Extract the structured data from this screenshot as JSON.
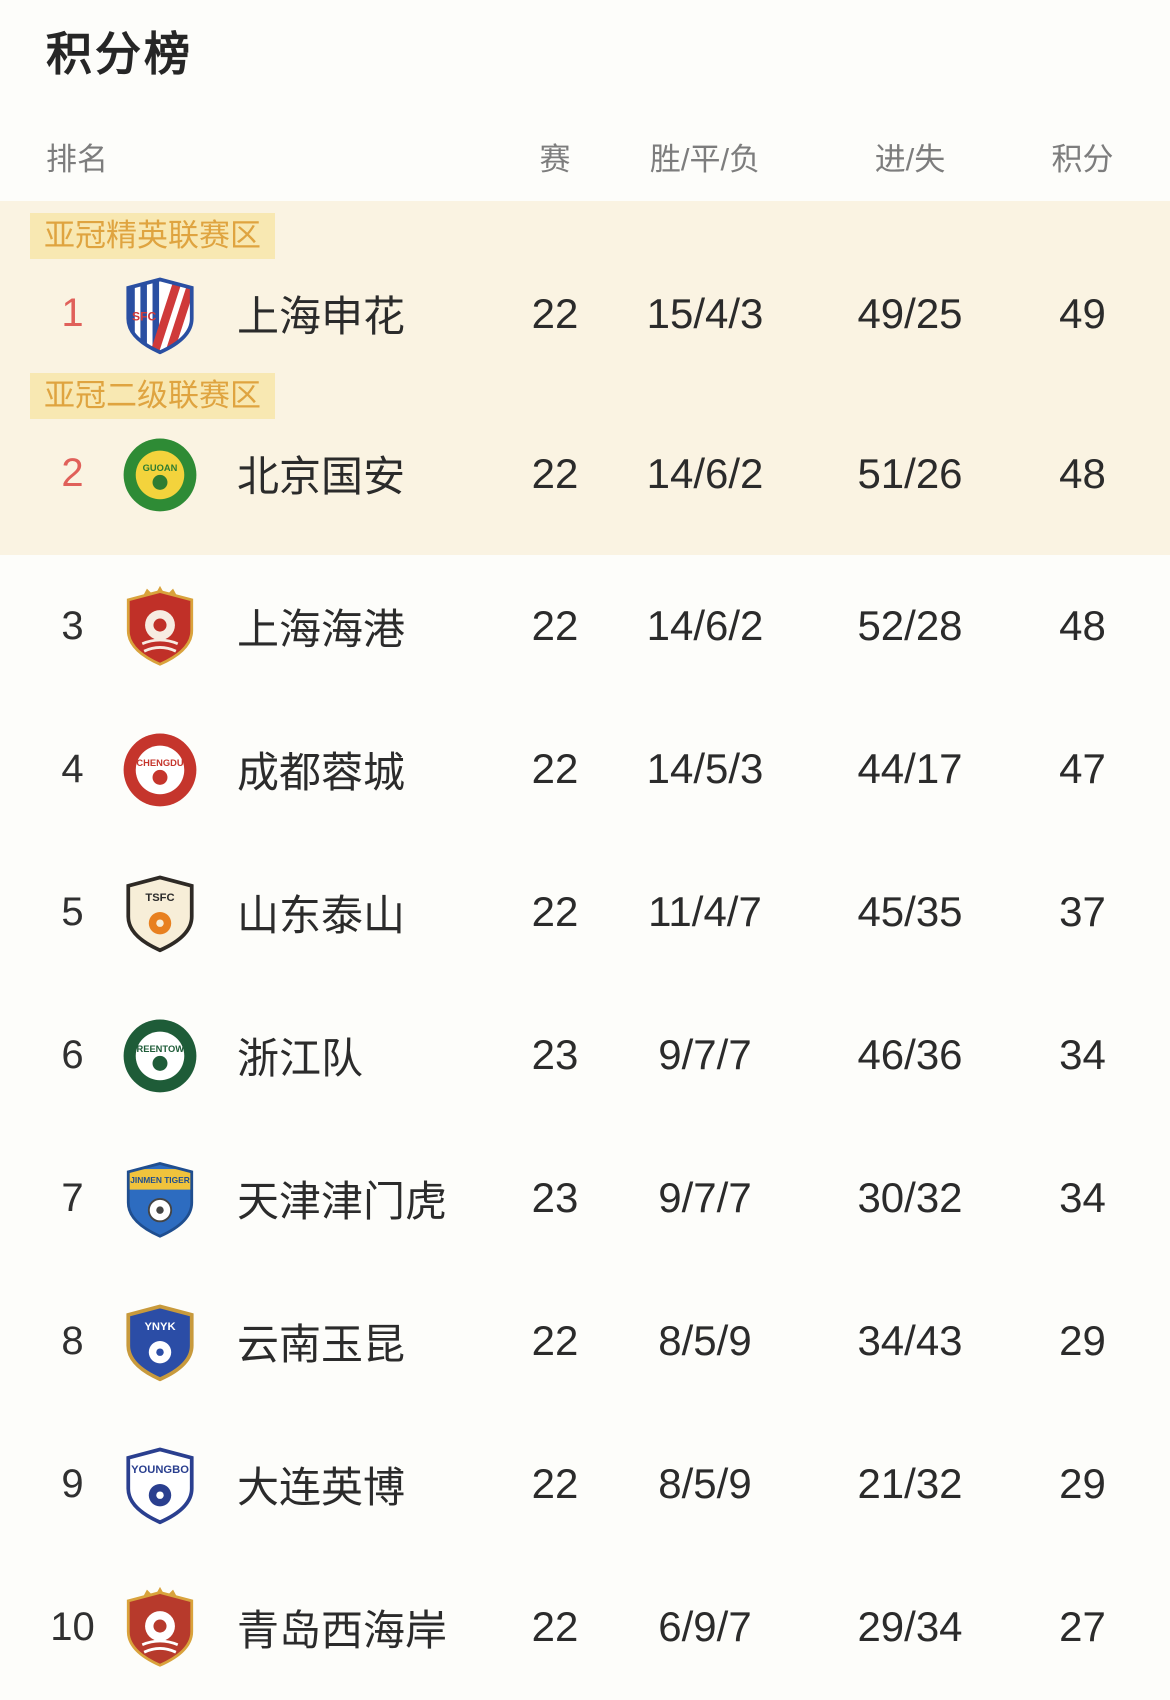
{
  "page": {
    "title": "积分榜"
  },
  "colors": {
    "page_bg": "#fdfdfa",
    "highlight_bg": "#faf3e2",
    "zone_label_bg": "#f8e8b2",
    "zone_label_text": "#dfa440",
    "rank_highlight": "#e0605a",
    "text_primary": "#2b2b2b",
    "text_secondary": "#7d7d7d"
  },
  "table": {
    "headers": {
      "rank": "排名",
      "games": "赛",
      "wdl": "胜/平/负",
      "goals": "进/失",
      "points": "积分"
    },
    "zone_labels": [
      {
        "text": "亚冠精英联赛区",
        "before_rank": 1
      },
      {
        "text": "亚冠二级联赛区",
        "before_rank": 2
      }
    ],
    "rows": [
      {
        "id": "shanghai-shenhua",
        "rank": "1",
        "team": "上海申花",
        "games": "22",
        "wdl": "15/4/3",
        "goals": "49/25",
        "points": "49",
        "rank_highlighted": true,
        "in_highlight_zone": true,
        "badge": {
          "type": "shield-stripes",
          "body": "#ffffff",
          "detail": "#2a4fa2",
          "accent": "#cf3a3a",
          "label": "SFC",
          "label_color": "#cf3a3a"
        }
      },
      {
        "id": "beijing-guoan",
        "rank": "2",
        "team": "北京国安",
        "games": "22",
        "wdl": "14/6/2",
        "goals": "51/26",
        "points": "48",
        "rank_highlighted": true,
        "in_highlight_zone": true,
        "badge": {
          "type": "circle-ring",
          "body": "#2e8b35",
          "detail": "#f3d33c",
          "accent": "#2e7d32",
          "label": "GUOAN",
          "label_color": "#2e7d32"
        }
      },
      {
        "id": "shanghai-port",
        "rank": "3",
        "team": "上海海港",
        "games": "22",
        "wdl": "14/6/2",
        "goals": "52/28",
        "points": "48",
        "rank_highlighted": false,
        "in_highlight_zone": false,
        "badge": {
          "type": "shield-crown",
          "body": "#c03028",
          "detail": "#f7ece2",
          "accent": "#d9a33c",
          "label": "",
          "label_color": "#f7ece2"
        }
      },
      {
        "id": "chengdu-rongcheng",
        "rank": "4",
        "team": "成都蓉城",
        "games": "22",
        "wdl": "14/5/3",
        "goals": "44/17",
        "points": "47",
        "rank_highlighted": false,
        "in_highlight_zone": false,
        "badge": {
          "type": "circle-ring",
          "body": "#c5352c",
          "detail": "#ffffff",
          "accent": "#c5352c",
          "label": "CHENGDU",
          "label_color": "#c5352c"
        }
      },
      {
        "id": "shandong-taishan",
        "rank": "5",
        "team": "山东泰山",
        "games": "22",
        "wdl": "11/4/7",
        "goals": "45/35",
        "points": "37",
        "rank_highlighted": false,
        "in_highlight_zone": false,
        "badge": {
          "type": "shield-plain",
          "body": "#f7eed8",
          "detail": "#2e2a25",
          "accent": "#e8801f",
          "label": "TSFC",
          "label_color": "#2b2b2b"
        }
      },
      {
        "id": "zhejiang-fc",
        "rank": "6",
        "team": "浙江队",
        "games": "23",
        "wdl": "9/7/7",
        "goals": "46/36",
        "points": "34",
        "rank_highlighted": false,
        "in_highlight_zone": false,
        "badge": {
          "type": "circle-ring",
          "body": "#1e5c38",
          "detail": "#ffffff",
          "accent": "#1e5c38",
          "label": "GREENTOWN",
          "label_color": "#1e5c38"
        }
      },
      {
        "id": "tianjin-jinmen-tiger",
        "rank": "7",
        "team": "天津津门虎",
        "games": "23",
        "wdl": "9/7/7",
        "goals": "30/32",
        "points": "34",
        "rank_highlighted": false,
        "in_highlight_zone": false,
        "badge": {
          "type": "shield-band",
          "body": "#2d6cc0",
          "detail": "#1f4e8f",
          "accent": "#f0c33c",
          "label": "JINMEN TIGER",
          "label_color": "#1f4e8f"
        }
      },
      {
        "id": "yunnan-yukun",
        "rank": "8",
        "team": "云南玉昆",
        "games": "22",
        "wdl": "8/5/9",
        "goals": "34/43",
        "points": "29",
        "rank_highlighted": false,
        "in_highlight_zone": false,
        "badge": {
          "type": "shield-plain",
          "body": "#2b4da6",
          "detail": "#c89a3c",
          "accent": "#ffffff",
          "label": "YNYK",
          "label_color": "#ffffff"
        }
      },
      {
        "id": "dalian-yingbo",
        "rank": "9",
        "team": "大连英博",
        "games": "22",
        "wdl": "8/5/9",
        "goals": "21/32",
        "points": "29",
        "rank_highlighted": false,
        "in_highlight_zone": false,
        "badge": {
          "type": "shield-plain",
          "body": "#ffffff",
          "detail": "#2a3f8f",
          "accent": "#2a3f8f",
          "label": "YOUNGBO",
          "label_color": "#2a3f8f"
        }
      },
      {
        "id": "qingdao-west-coast",
        "rank": "10",
        "team": "青岛西海岸",
        "games": "22",
        "wdl": "6/9/7",
        "goals": "29/34",
        "points": "27",
        "rank_highlighted": false,
        "in_highlight_zone": false,
        "badge": {
          "type": "shield-crown",
          "body": "#b73a2c",
          "detail": "#ffffff",
          "accent": "#d9a33c",
          "label": "",
          "label_color": "#ffffff"
        }
      }
    ]
  }
}
